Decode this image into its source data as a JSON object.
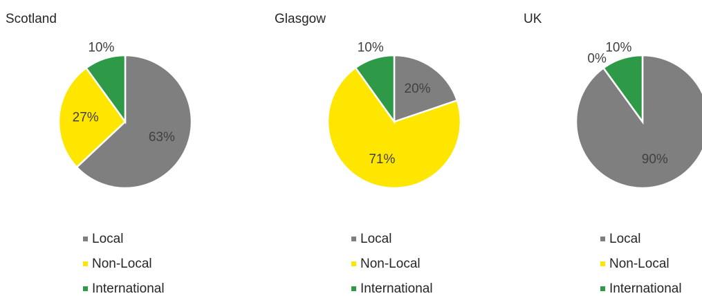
{
  "chart_data": [
    {
      "type": "pie",
      "title": "Scotland",
      "categories": [
        "Local",
        "Non-Local",
        "International"
      ],
      "values": [
        63,
        27,
        10
      ],
      "value_labels": [
        "63%",
        "27%",
        "10%"
      ],
      "colors": [
        "#7f7f80",
        "#ffe600",
        "#2e9a47"
      ]
    },
    {
      "type": "pie",
      "title": "Glasgow",
      "categories": [
        "Local",
        "Non-Local",
        "International"
      ],
      "values": [
        20,
        71,
        10
      ],
      "value_labels": [
        "20%",
        "71%",
        "10%"
      ],
      "colors": [
        "#7f7f80",
        "#ffe600",
        "#2e9a47"
      ]
    },
    {
      "type": "pie",
      "title": "UK",
      "categories": [
        "Local",
        "Non-Local",
        "International"
      ],
      "values": [
        90,
        0,
        10
      ],
      "value_labels": [
        "90%",
        "0%",
        "10%"
      ],
      "colors": [
        "#7f7f80",
        "#ffe600",
        "#2e9a47"
      ]
    }
  ]
}
